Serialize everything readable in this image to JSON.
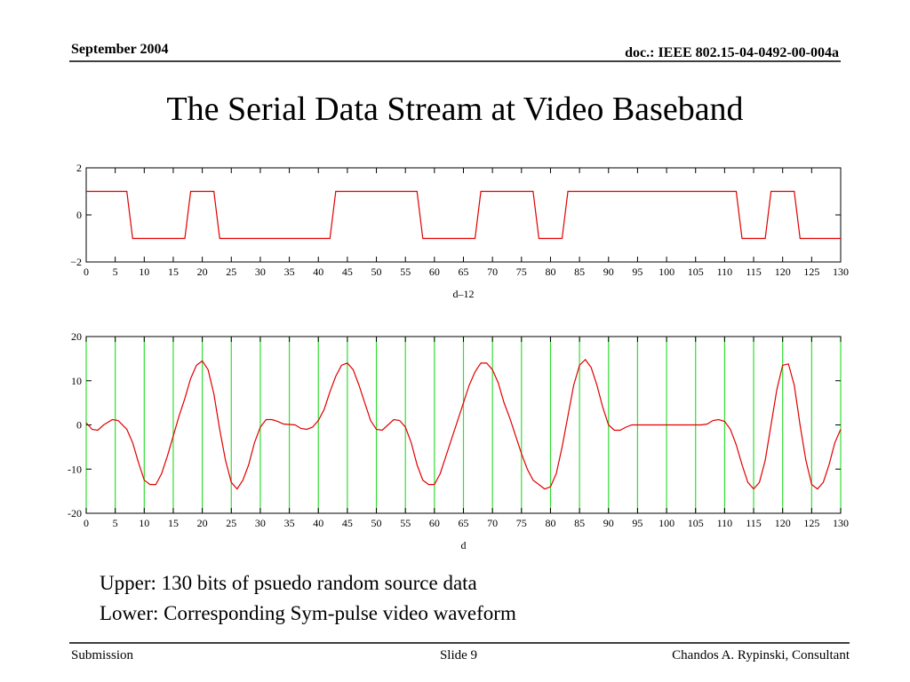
{
  "header": {
    "date": "September 2004",
    "doc": "doc.: IEEE 802.15-04-0492-00-004a"
  },
  "title": "The Serial Data Stream at Video Baseband",
  "chart_data": [
    {
      "type": "line",
      "x_label": "d–12",
      "x": [
        0,
        7,
        8,
        17,
        18,
        22,
        23,
        42,
        43,
        57,
        58,
        67,
        68,
        77,
        78,
        82,
        83,
        112,
        113,
        117,
        118,
        122,
        123,
        130
      ],
      "series": [
        {
          "color": "#e00000",
          "values": [
            1,
            1,
            -1,
            -1,
            1,
            1,
            -1,
            -1,
            1,
            1,
            -1,
            -1,
            1,
            1,
            -1,
            -1,
            1,
            1,
            -1,
            -1,
            1,
            1,
            -1,
            -1
          ]
        }
      ],
      "xlim": [
        0,
        130
      ],
      "ylim": [
        -2,
        2
      ],
      "xticks": [
        0,
        5,
        10,
        15,
        20,
        25,
        30,
        35,
        40,
        45,
        50,
        55,
        60,
        65,
        70,
        75,
        80,
        85,
        90,
        95,
        100,
        105,
        110,
        115,
        120,
        125,
        130
      ],
      "yticks": [
        {
          "value": -2,
          "label": "−2"
        },
        0,
        2
      ],
      "grid": false
    },
    {
      "type": "line",
      "x_label": "d",
      "x": [
        0,
        1,
        2,
        3,
        4.5,
        5.5,
        7,
        8,
        9,
        10,
        11,
        12,
        13,
        14,
        15,
        16,
        17,
        18,
        19,
        20,
        21,
        22,
        23,
        24,
        25,
        26,
        27,
        28,
        29,
        30,
        31,
        32,
        33,
        34,
        36,
        37,
        38,
        39,
        40,
        41,
        42,
        43,
        44,
        45,
        46,
        47,
        48,
        49,
        50,
        51,
        52,
        53,
        54,
        55,
        56,
        57,
        58,
        59,
        60,
        61,
        62,
        63,
        64,
        65,
        66,
        67,
        68,
        69,
        70,
        71,
        72,
        73,
        74,
        75,
        76,
        77,
        78,
        79,
        80,
        81,
        82,
        83,
        84,
        85,
        86,
        87,
        88,
        89,
        90,
        91,
        92,
        93,
        94,
        106,
        107,
        108,
        109,
        110,
        111,
        112,
        113,
        114,
        115,
        116,
        117,
        118,
        119,
        120,
        121,
        122,
        123,
        124,
        125,
        126,
        127,
        128,
        129,
        130
      ],
      "series": [
        {
          "color": "#e00000",
          "values": [
            0.5,
            -1,
            -1.2,
            0,
            1.2,
            1,
            -1,
            -4,
            -8.5,
            -12.5,
            -13.5,
            -13.5,
            -11,
            -7,
            -2.5,
            2,
            6,
            10.5,
            13.5,
            14.5,
            12.5,
            7,
            -1,
            -8,
            -13,
            -14.5,
            -12.5,
            -9,
            -4,
            -0.5,
            1.2,
            1.2,
            0.8,
            0.2,
            0,
            -0.8,
            -1,
            -0.5,
            1,
            3.5,
            7.5,
            11,
            13.5,
            14,
            12.5,
            9,
            5,
            1,
            -1,
            -1.2,
            0,
            1.2,
            1,
            -0.5,
            -4,
            -9,
            -12.5,
            -13.5,
            -13.5,
            -11,
            -7,
            -3,
            1,
            5,
            9,
            12,
            14,
            14,
            12.5,
            9.5,
            5,
            1.5,
            -2.5,
            -6.5,
            -10,
            -12.5,
            -13.5,
            -14.5,
            -14,
            -11,
            -5,
            2,
            9,
            13.5,
            14.8,
            13,
            9,
            4,
            0,
            -1.2,
            -1.2,
            -0.5,
            0,
            0,
            0.2,
            1,
            1.2,
            0.8,
            -1,
            -4.5,
            -9,
            -13,
            -14.5,
            -13,
            -8,
            0,
            8,
            13.5,
            13.8,
            9,
            0,
            -8,
            -13.5,
            -14.5,
            -13,
            -9,
            -4,
            -1
          ]
        }
      ],
      "xlim": [
        0,
        130
      ],
      "ylim": [
        -20,
        20
      ],
      "xticks": [
        0,
        5,
        10,
        15,
        20,
        25,
        30,
        35,
        40,
        45,
        50,
        55,
        60,
        65,
        70,
        75,
        80,
        85,
        90,
        95,
        100,
        105,
        110,
        115,
        120,
        125,
        130
      ],
      "yticks": [
        -20,
        -10,
        0,
        10,
        20
      ],
      "grid": true,
      "grid_color": "#33dd33"
    }
  ],
  "caption": [
    "Upper:  130 bits of psuedo random source data",
    "Lower:  Corresponding Sym-pulse video waveform"
  ],
  "footer": {
    "left": "Submission",
    "center": "Slide 9",
    "right": "Chandos A. Rypinski, Consultant"
  }
}
